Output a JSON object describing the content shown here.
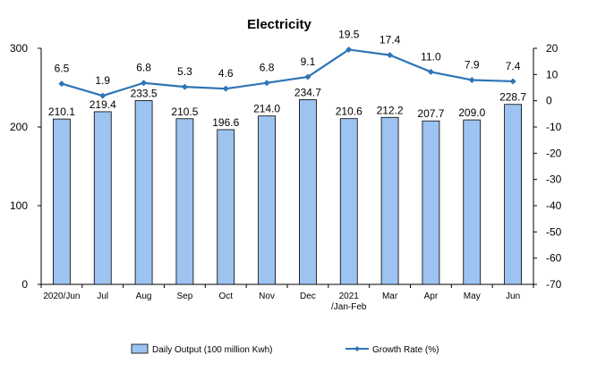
{
  "chart_data": {
    "type": "bar",
    "title": "Electricity",
    "categories": [
      [
        "2020/Jun"
      ],
      [
        "Jul"
      ],
      [
        "Aug"
      ],
      [
        "Sep"
      ],
      [
        "Oct"
      ],
      [
        "Nov"
      ],
      [
        "Dec"
      ],
      [
        "2021",
        "/Jan-Feb"
      ],
      [
        "Mar"
      ],
      [
        "Apr"
      ],
      [
        "May"
      ],
      [
        "Jun"
      ]
    ],
    "series": [
      {
        "name": "Daily Output (100 million Kwh)",
        "type": "bar",
        "axis": "left",
        "color": "#9DC3F0",
        "values": [
          210.1,
          219.4,
          233.5,
          210.5,
          196.6,
          214.0,
          234.7,
          210.6,
          212.2,
          207.7,
          209.0,
          228.7
        ]
      },
      {
        "name": "Growth Rate (%)",
        "type": "line",
        "axis": "right",
        "color": "#2E75B6",
        "values": [
          6.5,
          1.9,
          6.8,
          5.3,
          4.6,
          6.8,
          9.1,
          19.5,
          17.4,
          11.0,
          7.9,
          7.4
        ]
      }
    ],
    "y_left": {
      "min": 0,
      "max": 300,
      "ticks": [
        0,
        100,
        200,
        300
      ]
    },
    "y_right": {
      "min": -70,
      "max": 20,
      "ticks": [
        20,
        10,
        0,
        -10,
        -20,
        -30,
        -40,
        -50,
        -60,
        -70
      ]
    },
    "grid": false,
    "legend_position": "bottom"
  }
}
